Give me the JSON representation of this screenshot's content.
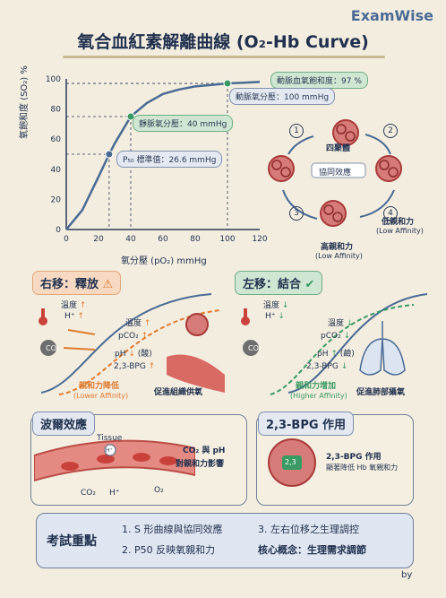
{
  "brand": "ExamWise",
  "title": "氧合血紅素解離曲線 (O₂-Hb Curve)",
  "colors": {
    "blue": "#4a6a93",
    "orange": "#e07a2e",
    "green": "#3a9a63",
    "red": "#c8423b"
  },
  "chart_data": {
    "type": "line",
    "xlabel": "氧分壓 (pO₂) mmHg",
    "ylabel": "氧飽和度 (SO₂) %",
    "xlim": [
      0,
      120
    ],
    "ylim": [
      0,
      100
    ],
    "xticks": [
      "0",
      "20",
      "40",
      "60",
      "80",
      "100",
      "120"
    ],
    "yticks": [
      "0",
      "20",
      "40",
      "60",
      "80",
      "100"
    ],
    "x": [
      0,
      10,
      20,
      26.6,
      30,
      40,
      50,
      60,
      70,
      80,
      90,
      100,
      110,
      120
    ],
    "y": [
      0,
      13,
      35,
      50,
      57,
      75,
      84,
      90,
      93,
      95,
      96,
      97,
      97.5,
      98
    ],
    "points": [
      {
        "x": 26.6,
        "y": 50,
        "label": "P₅₀ 標準值：26.6 mmHg"
      },
      {
        "x": 40,
        "y": 75,
        "label": "靜脈氧分壓：40 mmHg"
      },
      {
        "x": 100,
        "y": 97,
        "label": "動脈氧分壓：100 mmHg"
      }
    ],
    "top_label": "動脈血氧飽和度：97 %"
  },
  "cycle": {
    "center1": "四聚體",
    "center2": "協同效應",
    "low": "低親和力",
    "low_en": "(Low Affinity)",
    "high": "高親和力",
    "high_en": "(Low Affinity)",
    "steps": [
      "1",
      "2",
      "3",
      "4"
    ]
  },
  "right_shift": {
    "header": "右移：釋放",
    "factors": [
      "溫度",
      "H⁺",
      "CO₂"
    ],
    "effects": [
      "溫度",
      "pCO₂",
      "pH",
      "2,3-BPG"
    ],
    "ph_note": "(酸)",
    "curve_label": "親和力降低",
    "curve_en": "(Lower Affinity)",
    "result": "促進組織供氧"
  },
  "left_shift": {
    "header": "左移：結合",
    "factors": [
      "溫度",
      "H⁺",
      "CO₂"
    ],
    "effects": [
      "溫度",
      "pCO₂",
      "pH",
      "2,3-BPG"
    ],
    "ph_note": "(鹼)",
    "curve_label": "親和力增加",
    "curve_en": "(Higher Affinity)",
    "result": "促進肺部攝氧"
  },
  "bohr": {
    "header": "波爾效應",
    "tissue": "Tissue",
    "co2": "CO₂",
    "h": "H⁺",
    "o2": "O₂",
    "hplus_bubble": "H⁺",
    "note1": "CO₂ 與 pH",
    "note2": "對親和力影響"
  },
  "bpg": {
    "header": "2,3-BPG 作用",
    "center": "2,3",
    "note1": "2,3-BPG 作用",
    "note2": "顯著降低 Hb 氧親和力"
  },
  "key": {
    "title": "考試重點",
    "items": [
      {
        "num": "1.",
        "text": "S 形曲線與協同效應"
      },
      {
        "num": "3.",
        "text": "左右位移之生理調控"
      },
      {
        "num": "2.",
        "text": "P50 反映氧親和力"
      },
      {
        "num": "",
        "text": "核心概念：生理需求調節"
      }
    ]
  },
  "signature": "by"
}
